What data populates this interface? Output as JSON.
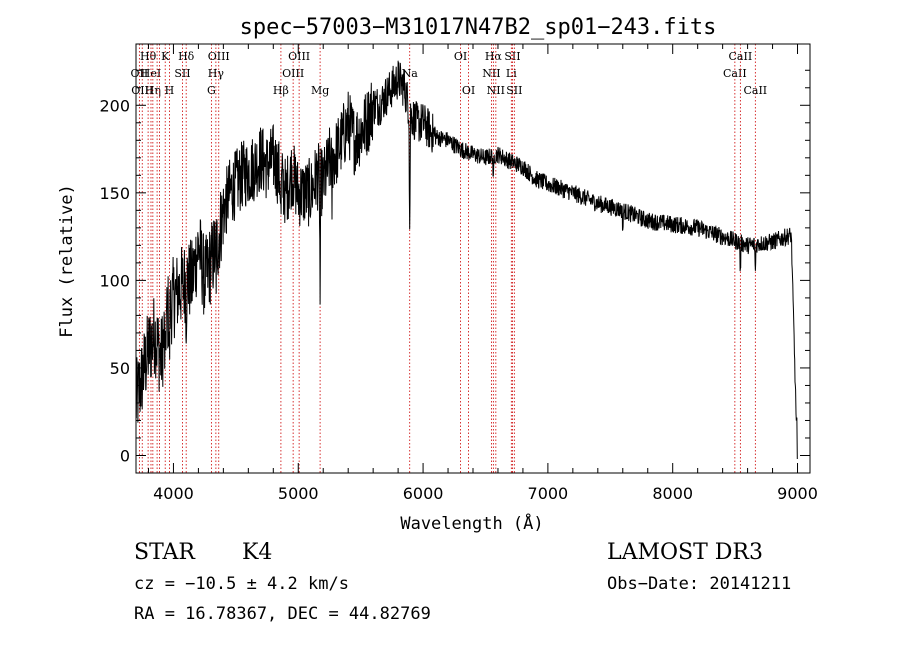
{
  "chart_data": {
    "type": "line",
    "title": "spec−57003−M31017N47B2_sp01−243.fits",
    "xlabel": "Wavelength (Å)",
    "ylabel": "Flux (relative)",
    "xlim": [
      3700,
      9100
    ],
    "ylim": [
      -10,
      235
    ],
    "x_ticks": [
      4000,
      5000,
      6000,
      7000,
      8000,
      9000
    ],
    "y_ticks": [
      0,
      50,
      100,
      150,
      200
    ],
    "grid": false,
    "continuum": {
      "x": [
        3700,
        3750,
        3800,
        3850,
        3900,
        3950,
        4000,
        4050,
        4100,
        4150,
        4200,
        4250,
        4300,
        4350,
        4400,
        4450,
        4500,
        4550,
        4600,
        4650,
        4700,
        4750,
        4800,
        4850,
        4900,
        4950,
        5000,
        5050,
        5100,
        5150,
        5200,
        5250,
        5300,
        5350,
        5400,
        5450,
        5500,
        5550,
        5600,
        5650,
        5700,
        5750,
        5800,
        5850,
        5900,
        5950,
        6000,
        6100,
        6200,
        6300,
        6400,
        6500,
        6600,
        6700,
        6800,
        6900,
        7000,
        7200,
        7400,
        7600,
        7800,
        8000,
        8200,
        8400,
        8600,
        8800,
        8950,
        8990
      ],
      "values": [
        30,
        45,
        60,
        70,
        55,
        80,
        90,
        95,
        100,
        100,
        120,
        100,
        110,
        120,
        140,
        150,
        155,
        160,
        162,
        165,
        170,
        165,
        170,
        160,
        150,
        162,
        150,
        150,
        150,
        160,
        155,
        168,
        172,
        180,
        190,
        180,
        185,
        190,
        200,
        200,
        205,
        210,
        215,
        210,
        195,
        190,
        190,
        182,
        180,
        175,
        172,
        170,
        172,
        168,
        165,
        158,
        155,
        150,
        144,
        140,
        134,
        132,
        130,
        125,
        120,
        122,
        126,
        20
      ]
    },
    "absorption_features": [
      {
        "x": 3934,
        "depth": 30
      },
      {
        "x": 3968,
        "depth": 30
      },
      {
        "x": 4102,
        "depth": 20
      },
      {
        "x": 4340,
        "depth": 20
      },
      {
        "x": 4861,
        "depth": 25
      },
      {
        "x": 5175,
        "depth": 70
      },
      {
        "x": 5270,
        "depth": 25
      },
      {
        "x": 5893,
        "depth": 75
      },
      {
        "x": 6563,
        "depth": 18
      },
      {
        "x": 7600,
        "depth": 12
      },
      {
        "x": 8542,
        "depth": 20
      },
      {
        "x": 8662,
        "depth": 18
      }
    ],
    "lines": [
      {
        "x": 3727,
        "label": "OII",
        "row": 1
      },
      {
        "x": 3750,
        "label": "OIII",
        "row": 2
      },
      {
        "x": 3797,
        "label": "Hθ",
        "row": 0
      },
      {
        "x": 3820,
        "label": "HeI",
        "row": 1
      },
      {
        "x": 3835,
        "label": "Hη",
        "row": 2
      },
      {
        "x": 3869,
        "label": "",
        "row": 2
      },
      {
        "x": 3889,
        "label": "",
        "row": 1
      },
      {
        "x": 3934,
        "label": "K",
        "row": 0
      },
      {
        "x": 3968,
        "label": "H",
        "row": 2
      },
      {
        "x": 4072,
        "label": "SII",
        "row": 1
      },
      {
        "x": 4102,
        "label": "Hδ",
        "row": 0
      },
      {
        "x": 4304,
        "label": "G",
        "row": 2
      },
      {
        "x": 4340,
        "label": "Hγ",
        "row": 1
      },
      {
        "x": 4363,
        "label": "OIII",
        "row": 0
      },
      {
        "x": 4861,
        "label": "Hβ",
        "row": 2
      },
      {
        "x": 4959,
        "label": "OIII",
        "row": 1
      },
      {
        "x": 5007,
        "label": "OIII",
        "row": 0
      },
      {
        "x": 5175,
        "label": "Mg",
        "row": 2
      },
      {
        "x": 5893,
        "label": "Na",
        "row": 1
      },
      {
        "x": 6300,
        "label": "OI",
        "row": 0
      },
      {
        "x": 6364,
        "label": "OI",
        "row": 2
      },
      {
        "x": 6548,
        "label": "NII",
        "row": 1
      },
      {
        "x": 6563,
        "label": "Hα",
        "row": 0
      },
      {
        "x": 6583,
        "label": "NII",
        "row": 2
      },
      {
        "x": 6707,
        "label": "Li",
        "row": 1
      },
      {
        "x": 6716,
        "label": "SII",
        "row": 0
      },
      {
        "x": 6731,
        "label": "SII",
        "row": 2
      },
      {
        "x": 8498,
        "label": "CaII",
        "row": 1
      },
      {
        "x": 8542,
        "label": "CaII",
        "row": 0
      },
      {
        "x": 8662,
        "label": "CaII",
        "row": 2
      }
    ]
  },
  "info": {
    "class": "STAR",
    "subclass": "K4",
    "survey": "LAMOST DR3",
    "cz": "cz = −10.5 ± 4.2 km/s",
    "obs_date": "Obs−Date: 20141211",
    "radec": "RA =  16.78367, DEC =  44.82769"
  },
  "colors": {
    "line": "#cc0000",
    "trace": "#000000",
    "axis": "#000000"
  }
}
